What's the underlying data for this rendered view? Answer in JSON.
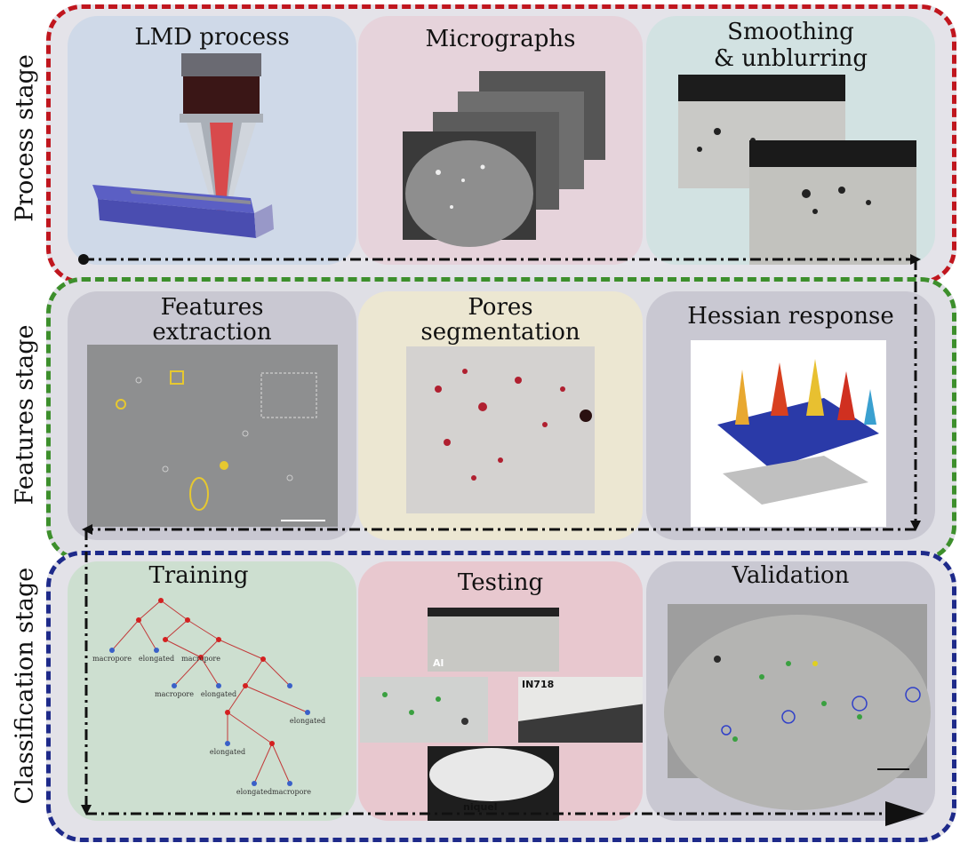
{
  "stages": [
    {
      "label": "Process stage",
      "color": "#c0161e"
    },
    {
      "label": "Features stage",
      "color": "#3d8f2c"
    },
    {
      "label": "Classification stage",
      "color": "#1e2a8a"
    }
  ],
  "panels": {
    "lmd": {
      "title": "LMD process"
    },
    "micrographs": {
      "title": "Micrographs"
    },
    "smoothing": {
      "title_line1": "Smoothing",
      "title_line2": "& unblurring"
    },
    "features": {
      "title_line1": "Features",
      "title_line2": "extraction"
    },
    "pores": {
      "title_line1": "Pores",
      "title_line2": "segmentation"
    },
    "hessian": {
      "title": "Hessian response"
    },
    "training": {
      "title": "Training"
    },
    "testing": {
      "title": "Testing"
    },
    "validation": {
      "title": "Validation"
    }
  },
  "testing_labels": {
    "al": "Al",
    "in718": "IN718",
    "niquel": "niquel"
  },
  "tree_leaves": [
    "macropore",
    "elongated",
    "macropore",
    "macropore",
    "elongated",
    "elongated",
    "elongated",
    "elongated",
    "macropore"
  ],
  "colors": {
    "panel_blue": "#cfd9e8",
    "panel_pink": "#e6d3db",
    "panel_teal": "#d2e2e2",
    "panel_grey": "#c9c8d2",
    "panel_yellow": "#ece7d2",
    "panel_green": "#cddfd0",
    "panel_red": "#e8c8cf"
  }
}
